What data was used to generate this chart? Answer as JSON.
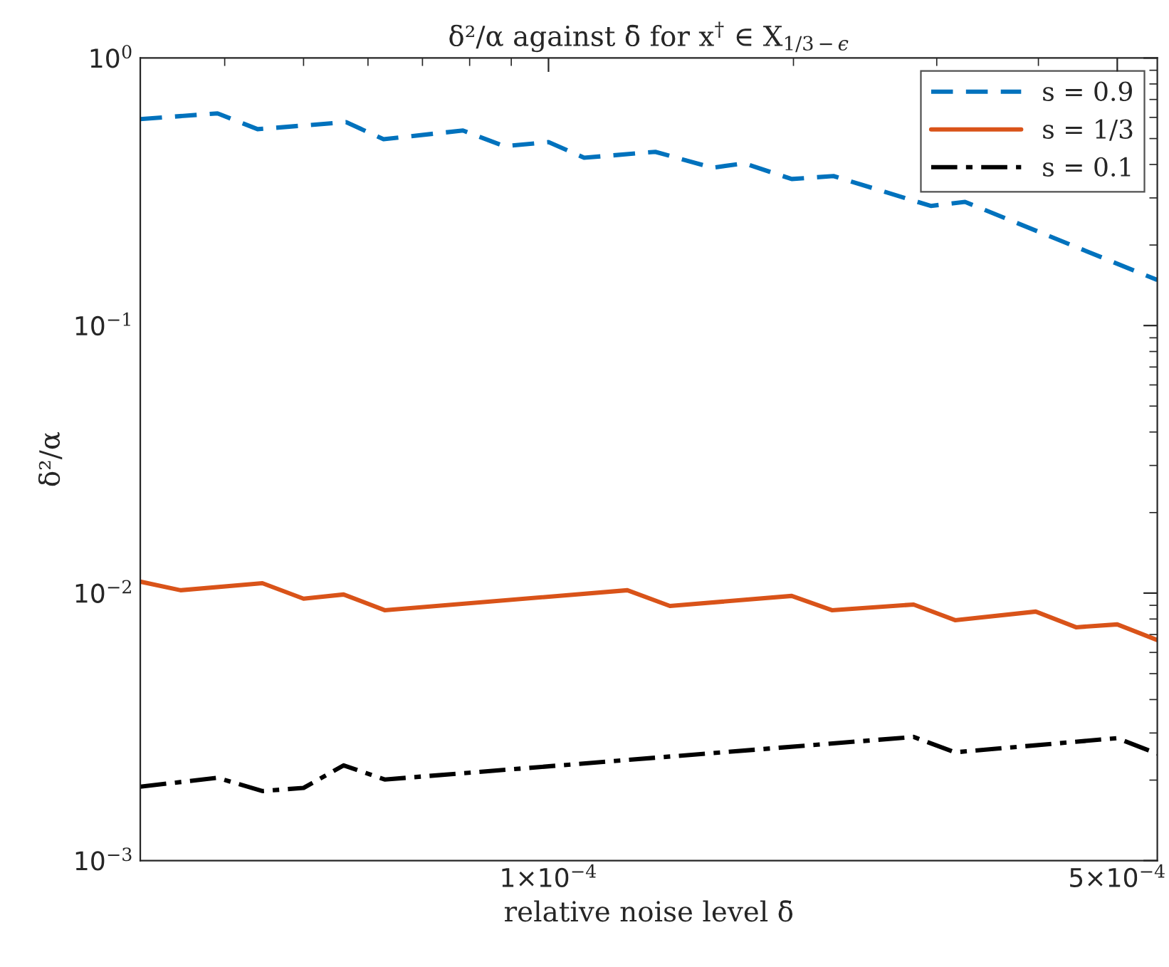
{
  "chart_data": {
    "type": "line",
    "title": "δ²/α against δ̄ for x$^{†}$ ∈ X$_{1/3−ϵ}$",
    "xlabel": "relative noise level δ̄",
    "ylabel": "δ²/α",
    "log": "xy",
    "grid": false,
    "legend": "top right",
    "xlim": [
      3.15e-05,
      0.00056
    ],
    "xticks": [
      {
        "value": 0.0001,
        "label": "1×10$^{−4}$"
      },
      {
        "value": 0.0005,
        "label": "5×10$^{−4}$"
      }
    ],
    "ylim": [
      0.001,
      1
    ],
    "yticks": [
      {
        "value": 0.001,
        "label": "10$^{−3}$"
      },
      {
        "value": 0.01,
        "label": "10$^{−2}$"
      },
      {
        "value": 0.1,
        "label": "10$^{−1}$"
      },
      {
        "value": 1,
        "label": "10$^{0}$"
      }
    ],
    "series": [
      {
        "name": "s = 0.9",
        "color": "#0072bd",
        "line_style": "dashed",
        "x": [
          3.15e-05,
          3.92e-05,
          4.39e-05,
          5.64e-05,
          6.27e-05,
          7.85e-05,
          8.83e-05,
          0.0001,
          0.0001106,
          0.0001353,
          0.000159,
          0.000174,
          0.000199,
          0.000224,
          0.000295,
          0.000325,
          0.00056
        ],
        "values": [
          0.591,
          0.621,
          0.542,
          0.576,
          0.497,
          0.536,
          0.468,
          0.485,
          0.424,
          0.446,
          0.389,
          0.404,
          0.353,
          0.362,
          0.28,
          0.29,
          0.148
        ]
      },
      {
        "name": "s = 1/3",
        "color": "#d95319",
        "line_style": "solid",
        "x": [
          3.15e-05,
          3.53e-05,
          4.45e-05,
          5e-05,
          5.6e-05,
          6.29e-05,
          0.000125,
          0.000141,
          0.000199,
          0.000223,
          0.000281,
          0.000316,
          0.000397,
          0.000445,
          0.0005,
          0.00056
        ],
        "values": [
          0.01104,
          0.01025,
          0.01089,
          0.00953,
          0.00988,
          0.00863,
          0.01025,
          0.00895,
          0.00976,
          0.00863,
          0.00906,
          0.00792,
          0.00853,
          0.00745,
          0.00764,
          0.00667
        ]
      },
      {
        "name": "s = 0.1",
        "color": "#000000",
        "line_style": "dashdot",
        "x": [
          3.15e-05,
          3.92e-05,
          4.45e-05,
          5e-05,
          5.6e-05,
          6.29e-05,
          0.000281,
          0.000316,
          0.0005,
          0.00056
        ],
        "values": [
          0.00189,
          0.00204,
          0.00182,
          0.00187,
          0.00227,
          0.00201,
          0.0029,
          0.00254,
          0.00287,
          0.00251
        ]
      }
    ]
  }
}
